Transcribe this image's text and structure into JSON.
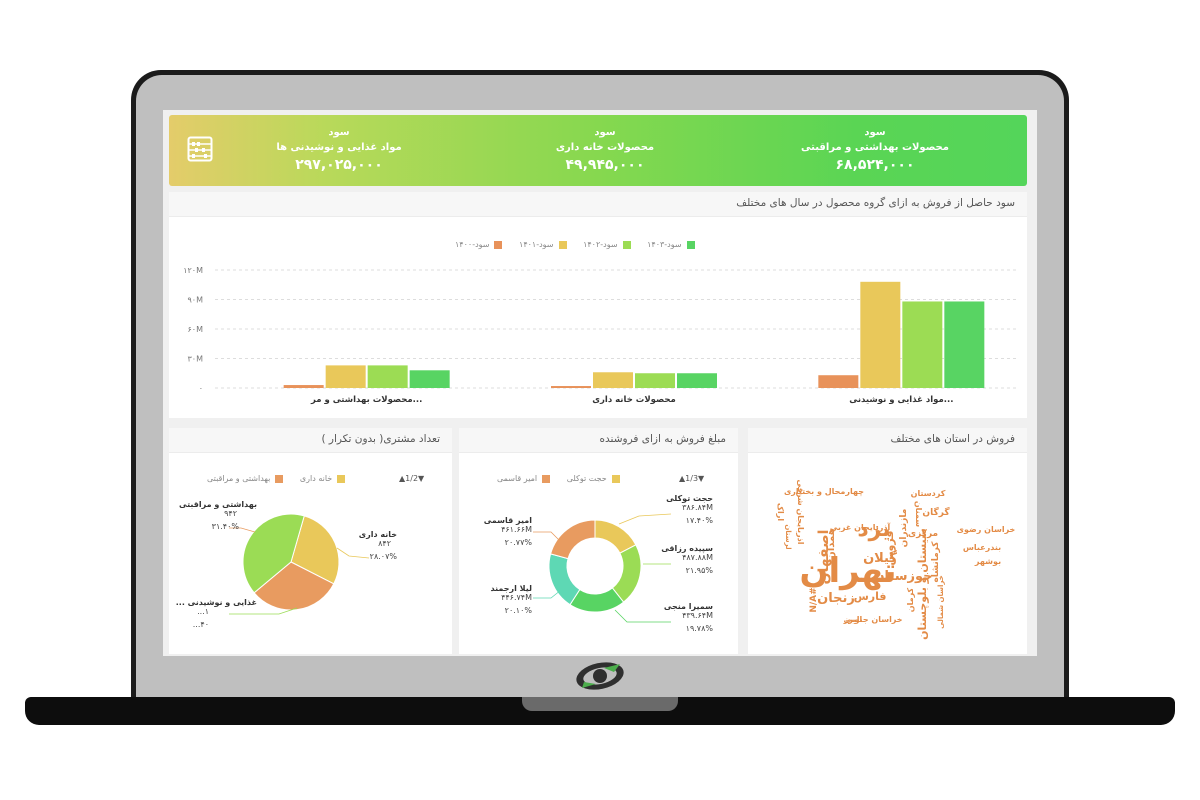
{
  "kpis": [
    {
      "title": "سود",
      "subtitle": "محصولات بهداشتی و مراقبتی",
      "value": "۶۸,۵۲۴,۰۰۰"
    },
    {
      "title": "سود",
      "subtitle": "محصولات خانه داری",
      "value": "۴۹,۹۴۵,۰۰۰"
    },
    {
      "title": "سود",
      "subtitle": "مواد غذایی و نوشیدنی ها",
      "value": "۲۹۷,۰۲۵,۰۰۰"
    }
  ],
  "colors": {
    "c1400": "#e8925a",
    "c1401": "#e9c85a",
    "c1402": "#9cdc54",
    "c1403": "#58d463"
  },
  "profit_chart": {
    "title": "سود حاصل از فروش به ازای گروه محصول در سال های مختلف",
    "legend": [
      "سود-۱۴۰۳",
      "سود-۱۴۰۲",
      "سود-۱۴۰۱",
      "سود-۱۴۰۰"
    ],
    "y_ticks": [
      "۱۲۰M",
      "۹۰M",
      "۶۰M",
      "۳۰M",
      "۰"
    ]
  },
  "chart_data": [
    {
      "type": "bar",
      "categories": [
        "...محصولات بهداشتی و مر",
        "محصولات خانه داری",
        "...مواد غذایی و نوشیدنی"
      ],
      "series": [
        {
          "name": "سود-۱۴۰۰",
          "values": [
            3,
            2,
            13
          ]
        },
        {
          "name": "سود-۱۴۰۱",
          "values": [
            23,
            16,
            108
          ]
        },
        {
          "name": "سود-۱۴۰۲",
          "values": [
            23,
            15,
            88
          ]
        },
        {
          "name": "سود-۱۴۰۳",
          "values": [
            18,
            15,
            88
          ]
        }
      ],
      "ylim": [
        0,
        120
      ],
      "grid": true,
      "legend_position": "top"
    },
    {
      "type": "pie",
      "labels": [
        "خانه داری",
        "بهداشتی و مراقبتی",
        "غذایی و نوشیدنی ..."
      ],
      "values": [
        28.07,
        31.4,
        40.53
      ],
      "colors": [
        "#e9c85a",
        "#e89b60",
        "#9bdc55"
      ]
    },
    {
      "type": "pie",
      "labels": [
        "حجت توکلی",
        "سپیده رزاقی",
        "سمیرا منجی",
        "لیلا ارجمند",
        "امیر قاسمی"
      ],
      "values": [
        17.4,
        21.95,
        19.78,
        20.1,
        20.77
      ],
      "colors": [
        "#e9c85a",
        "#9bdc55",
        "#58d463",
        "#5ed8b4",
        "#e89b60"
      ]
    }
  ],
  "customers": {
    "title": "تعداد مشتری( بدون تکرار )",
    "pager": "▲1/2▼",
    "legend": [
      "بهداشتی و مراقبتی",
      "خانه داری"
    ],
    "labels": [
      {
        "name": "بهداشتی و مراقبتی",
        "count": "۹۴۲",
        "pct": "۳۱.۴۰%"
      },
      {
        "name": "خانه داری",
        "count": "۸۴۲",
        "pct": "۲۸.۰۷%"
      },
      {
        "name": "غذایی و نوشیدنی ...",
        "count": "۱...",
        "pct": "۴۰..."
      }
    ]
  },
  "sales": {
    "title": "مبلغ فروش به ازای فروشنده",
    "pager": "▲1/3▼",
    "legend": [
      "حجت توکلی",
      "امیر قاسمی"
    ],
    "labels": [
      {
        "name": "حجت توکلی",
        "amount": "۳۸۶.۸۴M",
        "pct": "۱۷.۴۰%"
      },
      {
        "name": "سپیده رزاقی",
        "amount": "۴۸۷.۸۸M",
        "pct": "۲۱.۹۵%"
      },
      {
        "name": "سمیرا منجی",
        "amount": "۴۳۹.۶۴M",
        "pct": "۱۹.۷۸%"
      },
      {
        "name": "لیلا ارجمند",
        "amount": "۴۴۶.۷۴M",
        "pct": "۲۰.۱۰%"
      },
      {
        "name": "امیر قاسمی",
        "amount": "۴۶۱.۶۶M",
        "pct": "۲۰.۷۷%"
      }
    ]
  },
  "provinces": {
    "title": "فروش در استان های مختلف",
    "words": [
      "تهران",
      "خوزستان",
      "یزد",
      "اصفهان",
      "کرمانشاه",
      "گیلان",
      "زنجان",
      "فارس",
      "قزوین",
      "آذربایجان غربی",
      "چهارمحال و بختیاری",
      "کردستان",
      "گرگان",
      "خراسان رضوی",
      "بندرعباس",
      "بوشهر",
      "سیستان و بلوچستان",
      "مرکزی",
      "همدان",
      "کرمان",
      "خراسان جنوبی",
      "البرز",
      "اذربایجان شرقی",
      "لرستان",
      "مازندران",
      "سمنان",
      "N/A#",
      "خراسان شمالی",
      "اراک"
    ]
  }
}
